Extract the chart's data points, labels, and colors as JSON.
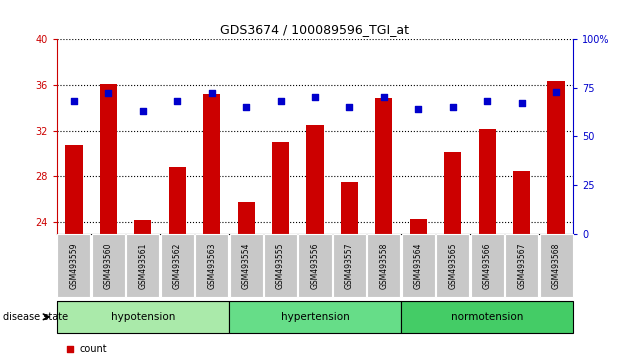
{
  "title": "GDS3674 / 100089596_TGI_at",
  "samples": [
    "GSM493559",
    "GSM493560",
    "GSM493561",
    "GSM493562",
    "GSM493563",
    "GSM493554",
    "GSM493555",
    "GSM493556",
    "GSM493557",
    "GSM493558",
    "GSM493564",
    "GSM493565",
    "GSM493566",
    "GSM493567",
    "GSM493568"
  ],
  "counts": [
    30.7,
    36.1,
    24.2,
    28.8,
    35.2,
    25.8,
    31.0,
    32.5,
    27.5,
    34.8,
    24.3,
    30.1,
    32.1,
    28.5,
    36.3
  ],
  "percentiles": [
    68,
    72,
    63,
    68,
    72,
    65,
    68,
    70,
    65,
    70,
    64,
    65,
    68,
    67,
    73
  ],
  "groups": [
    {
      "label": "hypotension",
      "start": 0,
      "end": 5,
      "color": "#90ee90"
    },
    {
      "label": "hypertension",
      "start": 5,
      "end": 10,
      "color": "#66dd66"
    },
    {
      "label": "normotension",
      "start": 10,
      "end": 15,
      "color": "#44cc44"
    }
  ],
  "ylim_left": [
    23,
    40
  ],
  "ylim_right": [
    0,
    100
  ],
  "yticks_left": [
    24,
    28,
    32,
    36,
    40
  ],
  "yticks_right": [
    0,
    25,
    50,
    75,
    100
  ],
  "bar_color": "#cc0000",
  "dot_color": "#0000cc",
  "grid_color": "#000000",
  "background_color": "#ffffff",
  "tick_label_bg": "#cccccc",
  "legend_count_color": "#cc0000",
  "legend_pct_color": "#0000cc",
  "disease_state_label": "disease state"
}
